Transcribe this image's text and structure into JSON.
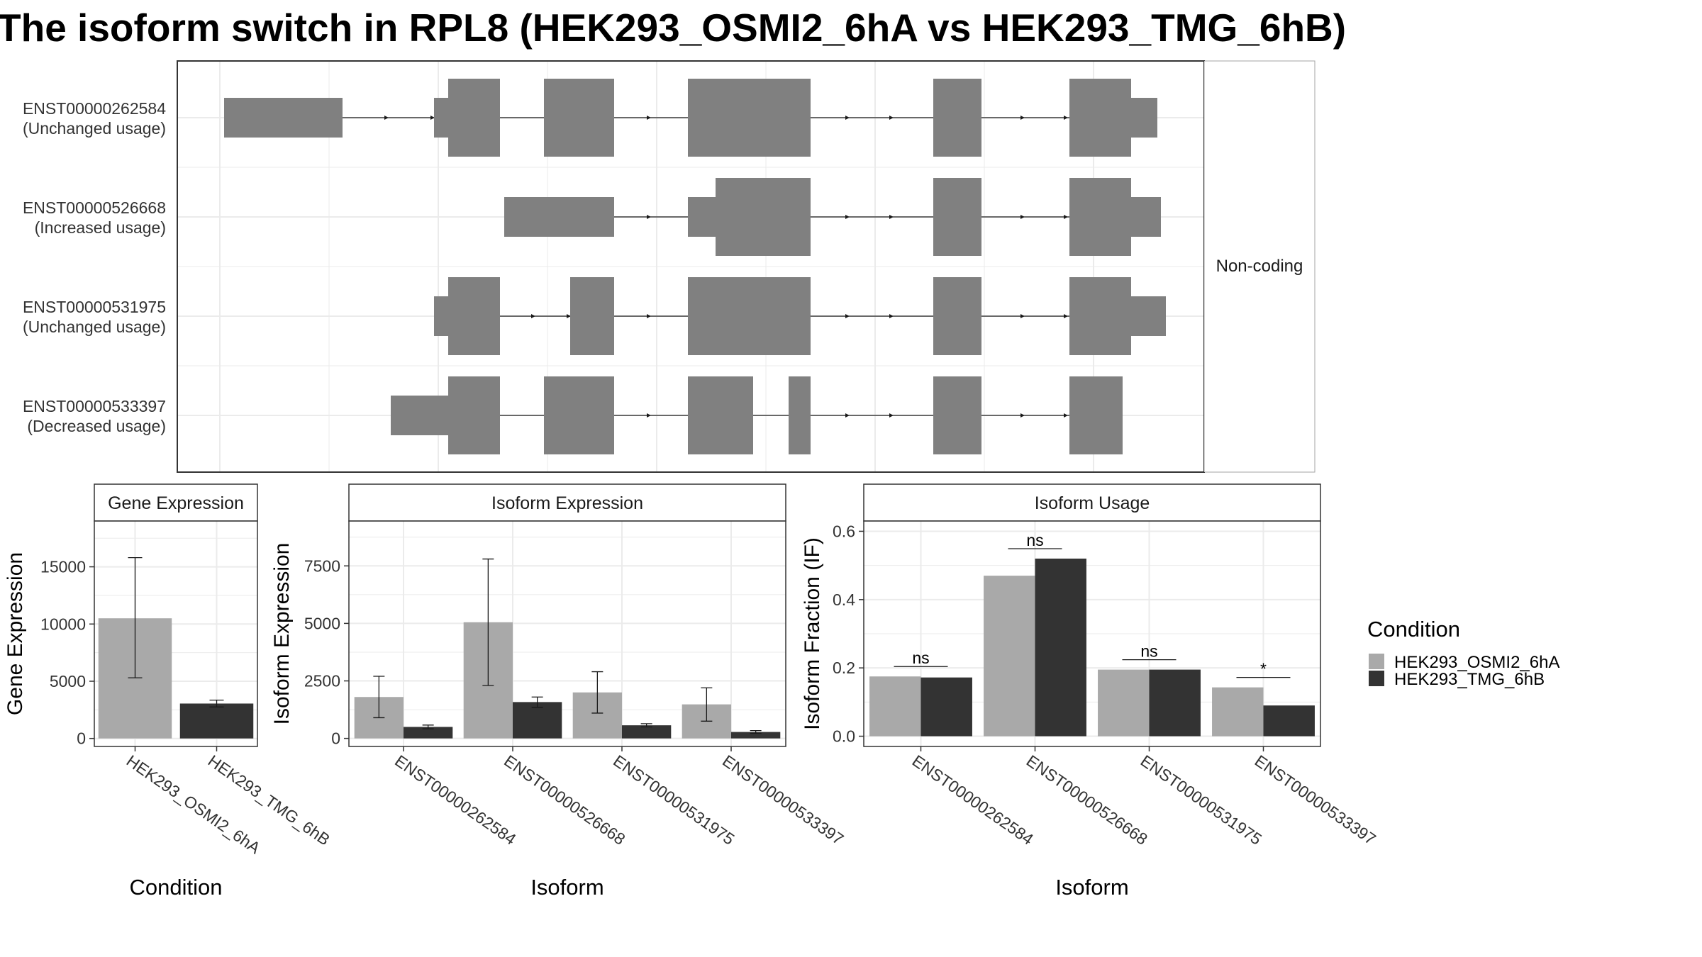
{
  "title": "The isoform switch in RPL8 (HEK293_OSMI2_6hA vs HEK293_TMG_6hB)",
  "colors": {
    "condition_a": "#a9a9a9",
    "condition_b": "#333333",
    "exon": "#808080",
    "grid": "#ebebeb",
    "panel_border": "#333333",
    "strip_fill": "#ffffff"
  },
  "chart_data": [
    {
      "type": "gene-structure",
      "facet_label": "Non-coding",
      "transcripts": [
        {
          "id": "ENST00000262584",
          "usage": "(Unchanged usage)"
        },
        {
          "id": "ENST00000526668",
          "usage": "(Increased usage)"
        },
        {
          "id": "ENST00000531975",
          "usage": "(Unchanged usage)"
        },
        {
          "id": "ENST00000533397",
          "usage": "(Decreased usage)"
        }
      ]
    },
    {
      "type": "bar",
      "title": "Gene Expression",
      "xlabel": "Condition",
      "ylabel": "Gene Expression",
      "ylim": [
        -700,
        19000
      ],
      "yticks": [
        0,
        5000,
        10000,
        15000
      ],
      "yticklabels": [
        "0",
        "5000",
        "10000",
        "15000"
      ],
      "categories": [
        "HEK293_OSMI2_6hA",
        "HEK293_TMG_6hB"
      ],
      "values": [
        10500,
        3050
      ],
      "error_low": [
        5300,
        2750
      ],
      "error_high": [
        15800,
        3350
      ]
    },
    {
      "type": "bar",
      "title": "Isoform Expression",
      "xlabel": "Isoform",
      "ylabel": "Isoform Expression",
      "ylim": [
        -350,
        9450
      ],
      "yticks": [
        0,
        2500,
        5000,
        7500
      ],
      "yticklabels": [
        "0",
        "2500",
        "5000",
        "7500"
      ],
      "categories": [
        "ENST00000262584",
        "ENST00000526668",
        "ENST00000531975",
        "ENST00000533397"
      ],
      "series": [
        {
          "name": "HEK293_OSMI2_6hA",
          "values": [
            1800,
            5050,
            2000,
            1480
          ],
          "error_low": [
            900,
            2300,
            1100,
            750
          ],
          "error_high": [
            2700,
            7800,
            2900,
            2200
          ]
        },
        {
          "name": "HEK293_TMG_6hB",
          "values": [
            500,
            1580,
            570,
            280
          ],
          "error_low": [
            420,
            1350,
            500,
            220
          ],
          "error_high": [
            580,
            1800,
            640,
            340
          ]
        }
      ]
    },
    {
      "type": "bar",
      "title": "Isoform Usage",
      "xlabel": "Isoform",
      "ylabel": "Isoform Fraction (IF)",
      "ylim": [
        -0.03,
        0.63
      ],
      "yticks": [
        0.0,
        0.2,
        0.4,
        0.6
      ],
      "yticklabels": [
        "0.0",
        "0.2",
        "0.4",
        "0.6"
      ],
      "categories": [
        "ENST00000262584",
        "ENST00000526668",
        "ENST00000531975",
        "ENST00000533397"
      ],
      "series": [
        {
          "name": "HEK293_OSMI2_6hA",
          "values": [
            0.175,
            0.47,
            0.195,
            0.143
          ]
        },
        {
          "name": "HEK293_TMG_6hB",
          "values": [
            0.172,
            0.52,
            0.195,
            0.09
          ]
        }
      ],
      "significance": [
        "ns",
        "ns",
        "ns",
        "*"
      ]
    }
  ],
  "legend": {
    "title": "Condition",
    "entries": [
      "HEK293_OSMI2_6hA",
      "HEK293_TMG_6hB"
    ]
  }
}
